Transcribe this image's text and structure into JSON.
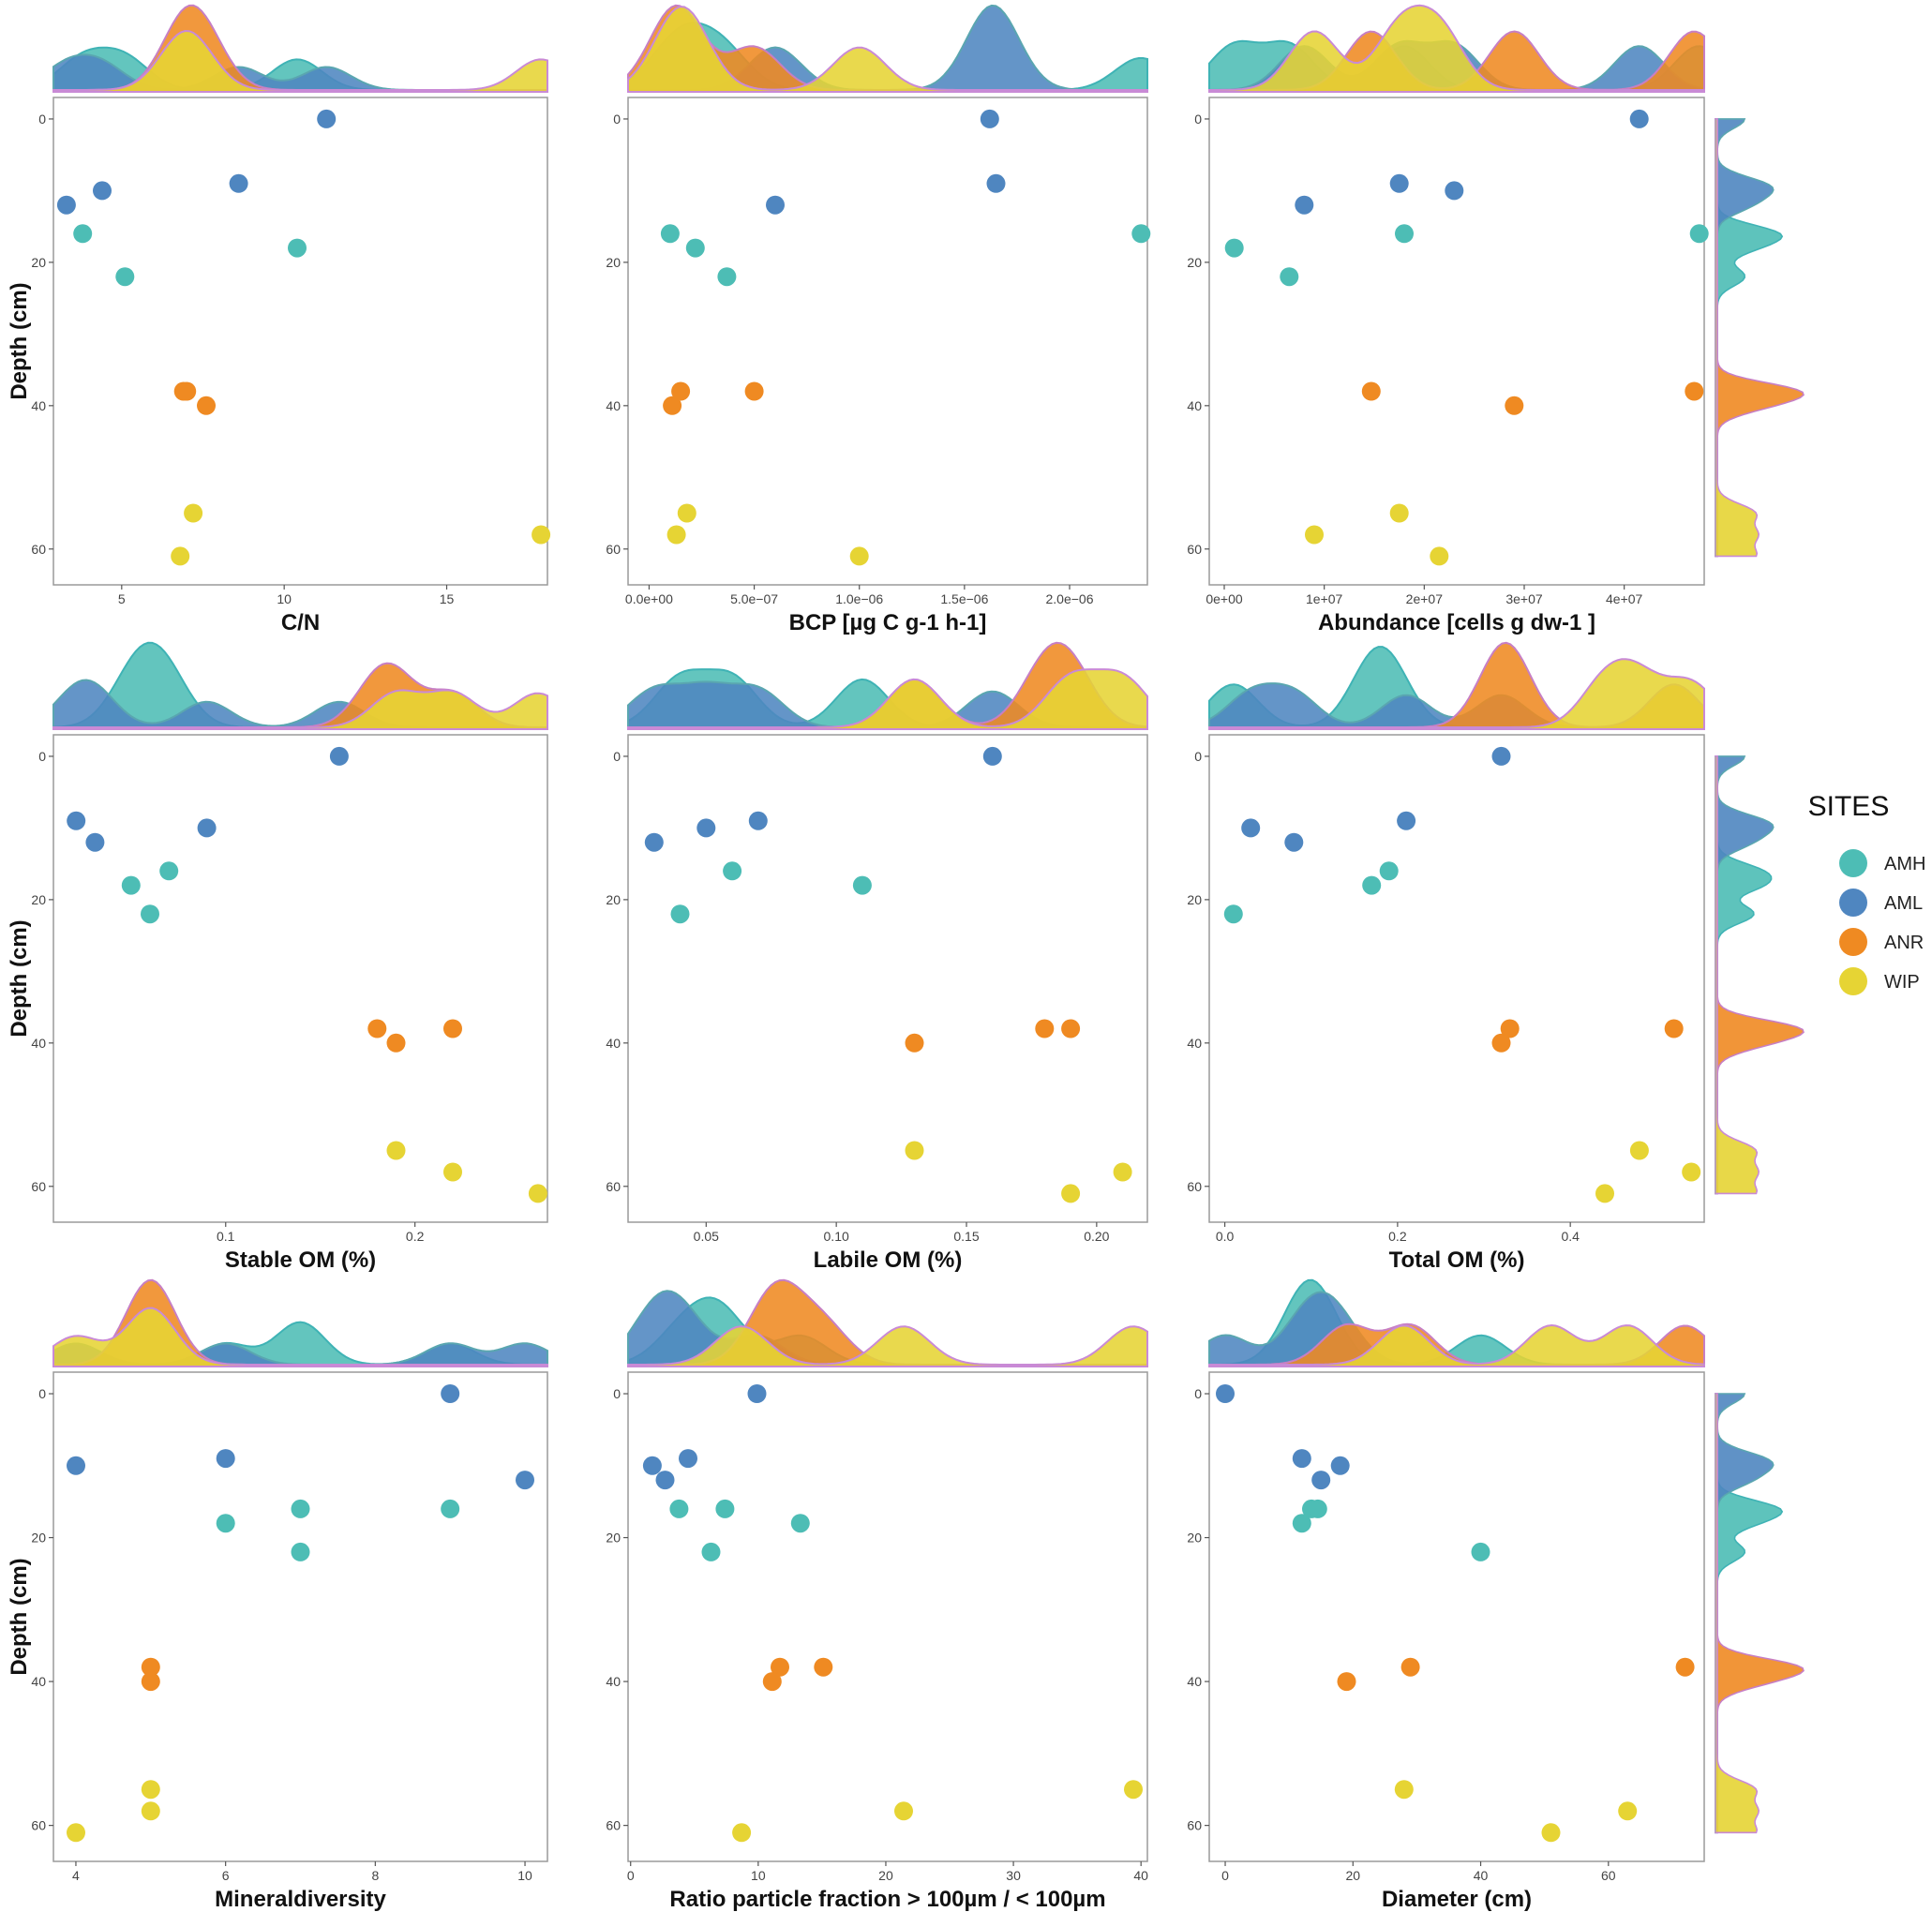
{
  "legend": {
    "title": "SITES",
    "items": [
      {
        "name": "AMH",
        "color": "#4dbdb5"
      },
      {
        "name": "AML",
        "color": "#4f86c0"
      },
      {
        "name": "ANR",
        "color": "#ef8a22"
      },
      {
        "name": "WIP",
        "color": "#e6d434"
      }
    ]
  },
  "y_axis": {
    "label": "Depth (cm)",
    "ticks": [
      0,
      20,
      40,
      60
    ],
    "range": [
      -3,
      65
    ]
  },
  "chart_data": [
    {
      "type": "scatter",
      "xlabel": "C/N",
      "xlim": [
        2.9,
        18.1
      ],
      "xticks": [
        5,
        10,
        15
      ],
      "xtick_labels": [
        "5",
        "10",
        "15"
      ],
      "top_density": true,
      "right_density": false,
      "points": [
        {
          "site": "AML",
          "x": 11.3,
          "y": 0
        },
        {
          "site": "AML",
          "x": 8.6,
          "y": 9
        },
        {
          "site": "AML",
          "x": 4.4,
          "y": 10
        },
        {
          "site": "AML",
          "x": 3.3,
          "y": 12
        },
        {
          "site": "AMH",
          "x": 3.8,
          "y": 16
        },
        {
          "site": "AMH",
          "x": 10.4,
          "y": 18
        },
        {
          "site": "AMH",
          "x": 5.1,
          "y": 22
        },
        {
          "site": "ANR",
          "x": 6.9,
          "y": 38
        },
        {
          "site": "ANR",
          "x": 7.0,
          "y": 38
        },
        {
          "site": "ANR",
          "x": 7.6,
          "y": 40
        },
        {
          "site": "WIP",
          "x": 7.2,
          "y": 55
        },
        {
          "site": "WIP",
          "x": 17.9,
          "y": 58
        },
        {
          "site": "WIP",
          "x": 6.8,
          "y": 61
        }
      ]
    },
    {
      "type": "scatter",
      "xlabel": "BCP [µg C g-1 h-1]",
      "xlim": [
        -1e-07,
        2.37e-06
      ],
      "xticks": [
        0,
        5e-07,
        1e-06,
        1.5e-06,
        2e-06
      ],
      "xtick_labels": [
        "0.0e+00",
        "5.0e−07",
        "1.0e−06",
        "1.5e−06",
        "2.0e−06"
      ],
      "top_density": true,
      "right_density": false,
      "points": [
        {
          "site": "AML",
          "x": 1.62e-06,
          "y": 0
        },
        {
          "site": "AML",
          "x": 1.65e-06,
          "y": 9
        },
        {
          "site": "AML",
          "x": 6e-07,
          "y": 12
        },
        {
          "site": "AMH",
          "x": 1e-07,
          "y": 16
        },
        {
          "site": "AMH",
          "x": 2.34e-06,
          "y": 16
        },
        {
          "site": "AMH",
          "x": 2.2e-07,
          "y": 18
        },
        {
          "site": "AMH",
          "x": 3.7e-07,
          "y": 22
        },
        {
          "site": "ANR",
          "x": 1.5e-07,
          "y": 38
        },
        {
          "site": "ANR",
          "x": 5e-07,
          "y": 38
        },
        {
          "site": "ANR",
          "x": 1.1e-07,
          "y": 40
        },
        {
          "site": "WIP",
          "x": 1.8e-07,
          "y": 55
        },
        {
          "site": "WIP",
          "x": 1.3e-07,
          "y": 58
        },
        {
          "site": "WIP",
          "x": 1e-06,
          "y": 61
        }
      ]
    },
    {
      "type": "scatter",
      "xlabel": "Abundance [cells g dw-1 ]",
      "xlim": [
        -1500000.0,
        48000000.0
      ],
      "xticks": [
        0,
        10000000.0,
        20000000.0,
        30000000.0,
        40000000.0
      ],
      "xtick_labels": [
        "0e+00",
        "1e+07",
        "2e+07",
        "3e+07",
        "4e+07"
      ],
      "top_density": true,
      "right_density": true,
      "points": [
        {
          "site": "AML",
          "x": 41500000.0,
          "y": 0
        },
        {
          "site": "AML",
          "x": 17500000.0,
          "y": 9
        },
        {
          "site": "AML",
          "x": 23000000.0,
          "y": 10
        },
        {
          "site": "AML",
          "x": 8000000.0,
          "y": 12
        },
        {
          "site": "AMH",
          "x": 18000000.0,
          "y": 16
        },
        {
          "site": "AMH",
          "x": 47500000.0,
          "y": 16
        },
        {
          "site": "AMH",
          "x": 1000000.0,
          "y": 18
        },
        {
          "site": "AMH",
          "x": 6500000.0,
          "y": 22
        },
        {
          "site": "ANR",
          "x": 14700000.0,
          "y": 38
        },
        {
          "site": "ANR",
          "x": 47000000.0,
          "y": 38
        },
        {
          "site": "ANR",
          "x": 29000000.0,
          "y": 40
        },
        {
          "site": "WIP",
          "x": 17500000.0,
          "y": 55
        },
        {
          "site": "WIP",
          "x": 9000000.0,
          "y": 58
        },
        {
          "site": "WIP",
          "x": 21500000.0,
          "y": 61
        }
      ]
    },
    {
      "type": "scatter",
      "xlabel": "Stable OM (%)",
      "xlim": [
        0.009,
        0.27
      ],
      "xticks": [
        0.1,
        0.2
      ],
      "xtick_labels": [
        "0.1",
        "0.2"
      ],
      "top_density": true,
      "right_density": false,
      "points": [
        {
          "site": "AML",
          "x": 0.16,
          "y": 0
        },
        {
          "site": "AML",
          "x": 0.021,
          "y": 9
        },
        {
          "site": "AML",
          "x": 0.09,
          "y": 10
        },
        {
          "site": "AML",
          "x": 0.031,
          "y": 12
        },
        {
          "site": "AMH",
          "x": 0.07,
          "y": 16
        },
        {
          "site": "AMH",
          "x": 0.05,
          "y": 18
        },
        {
          "site": "AMH",
          "x": 0.06,
          "y": 22
        },
        {
          "site": "ANR",
          "x": 0.18,
          "y": 38
        },
        {
          "site": "ANR",
          "x": 0.22,
          "y": 38
        },
        {
          "site": "ANR",
          "x": 0.19,
          "y": 40
        },
        {
          "site": "WIP",
          "x": 0.19,
          "y": 55
        },
        {
          "site": "WIP",
          "x": 0.22,
          "y": 58
        },
        {
          "site": "WIP",
          "x": 0.265,
          "y": 61
        }
      ]
    },
    {
      "type": "scatter",
      "xlabel": "Labile OM (%)",
      "xlim": [
        0.02,
        0.2195
      ],
      "xticks": [
        0.05,
        0.1,
        0.15,
        0.2
      ],
      "xtick_labels": [
        "0.05",
        "0.10",
        "0.15",
        "0.20"
      ],
      "top_density": true,
      "right_density": false,
      "points": [
        {
          "site": "AML",
          "x": 0.16,
          "y": 0
        },
        {
          "site": "AML",
          "x": 0.07,
          "y": 9
        },
        {
          "site": "AML",
          "x": 0.05,
          "y": 10
        },
        {
          "site": "AML",
          "x": 0.03,
          "y": 12
        },
        {
          "site": "AMH",
          "x": 0.06,
          "y": 16
        },
        {
          "site": "AMH",
          "x": 0.11,
          "y": 18
        },
        {
          "site": "AMH",
          "x": 0.04,
          "y": 22
        },
        {
          "site": "ANR",
          "x": 0.18,
          "y": 38
        },
        {
          "site": "ANR",
          "x": 0.19,
          "y": 38
        },
        {
          "site": "ANR",
          "x": 0.13,
          "y": 40
        },
        {
          "site": "WIP",
          "x": 0.13,
          "y": 55
        },
        {
          "site": "WIP",
          "x": 0.21,
          "y": 58
        },
        {
          "site": "WIP",
          "x": 0.19,
          "y": 61
        }
      ]
    },
    {
      "type": "scatter",
      "xlabel": "Total OM (%)",
      "xlim": [
        -0.018,
        0.555
      ],
      "xticks": [
        0,
        0.2,
        0.4
      ],
      "xtick_labels": [
        "0.0",
        "0.2",
        "0.4"
      ],
      "top_density": true,
      "right_density": true,
      "points": [
        {
          "site": "AML",
          "x": 0.32,
          "y": 0
        },
        {
          "site": "AML",
          "x": 0.21,
          "y": 9
        },
        {
          "site": "AML",
          "x": 0.03,
          "y": 10
        },
        {
          "site": "AML",
          "x": 0.08,
          "y": 12
        },
        {
          "site": "AMH",
          "x": 0.19,
          "y": 16
        },
        {
          "site": "AMH",
          "x": 0.17,
          "y": 18
        },
        {
          "site": "AMH",
          "x": 0.01,
          "y": 22
        },
        {
          "site": "ANR",
          "x": 0.33,
          "y": 38
        },
        {
          "site": "ANR",
          "x": 0.52,
          "y": 38
        },
        {
          "site": "ANR",
          "x": 0.32,
          "y": 40
        },
        {
          "site": "WIP",
          "x": 0.48,
          "y": 55
        },
        {
          "site": "WIP",
          "x": 0.54,
          "y": 58
        },
        {
          "site": "WIP",
          "x": 0.44,
          "y": 61
        }
      ]
    },
    {
      "type": "scatter",
      "xlabel": "Mineraldiversity",
      "xlim": [
        3.7,
        10.3
      ],
      "xticks": [
        4,
        6,
        8,
        10
      ],
      "xtick_labels": [
        "4",
        "6",
        "8",
        "10"
      ],
      "top_density": true,
      "right_density": false,
      "points": [
        {
          "site": "AML",
          "x": 9,
          "y": 0
        },
        {
          "site": "AML",
          "x": 6,
          "y": 9
        },
        {
          "site": "AML",
          "x": 4,
          "y": 10
        },
        {
          "site": "AML",
          "x": 10,
          "y": 12
        },
        {
          "site": "AMH",
          "x": 7,
          "y": 16
        },
        {
          "site": "AMH",
          "x": 9,
          "y": 16
        },
        {
          "site": "AMH",
          "x": 6,
          "y": 18
        },
        {
          "site": "AMH",
          "x": 7,
          "y": 22
        },
        {
          "site": "ANR",
          "x": 5,
          "y": 38
        },
        {
          "site": "ANR",
          "x": 5,
          "y": 40
        },
        {
          "site": "WIP",
          "x": 5,
          "y": 55
        },
        {
          "site": "WIP",
          "x": 5,
          "y": 58
        },
        {
          "site": "WIP",
          "x": 4,
          "y": 61
        }
      ]
    },
    {
      "type": "scatter",
      "xlabel": "Ratio particle fraction > 100µm / < 100µm",
      "xlim": [
        -0.2,
        40.5
      ],
      "xticks": [
        0,
        10,
        20,
        30,
        40
      ],
      "xtick_labels": [
        "0",
        "10",
        "20",
        "30",
        "40"
      ],
      "top_density": true,
      "right_density": false,
      "points": [
        {
          "site": "AML",
          "x": 9.9,
          "y": 0
        },
        {
          "site": "AML",
          "x": 4.5,
          "y": 9
        },
        {
          "site": "AML",
          "x": 1.7,
          "y": 10
        },
        {
          "site": "AML",
          "x": 2.7,
          "y": 12
        },
        {
          "site": "AMH",
          "x": 3.8,
          "y": 16
        },
        {
          "site": "AMH",
          "x": 7.4,
          "y": 16
        },
        {
          "site": "AMH",
          "x": 13.3,
          "y": 18
        },
        {
          "site": "AMH",
          "x": 6.3,
          "y": 22
        },
        {
          "site": "ANR",
          "x": 11.7,
          "y": 38
        },
        {
          "site": "ANR",
          "x": 15.1,
          "y": 38
        },
        {
          "site": "ANR",
          "x": 11.1,
          "y": 40
        },
        {
          "site": "WIP",
          "x": 39.4,
          "y": 55
        },
        {
          "site": "WIP",
          "x": 21.4,
          "y": 58
        },
        {
          "site": "WIP",
          "x": 8.7,
          "y": 61
        }
      ]
    },
    {
      "type": "scatter",
      "xlabel": "Diameter (cm)",
      "xlim": [
        -2.5,
        75
      ],
      "xticks": [
        0,
        20,
        40,
        60
      ],
      "xtick_labels": [
        "0",
        "20",
        "40",
        "60"
      ],
      "top_density": true,
      "right_density": true,
      "points": [
        {
          "site": "AML",
          "x": 0,
          "y": 0
        },
        {
          "site": "AML",
          "x": 12,
          "y": 9
        },
        {
          "site": "AML",
          "x": 18,
          "y": 10
        },
        {
          "site": "AML",
          "x": 15,
          "y": 12
        },
        {
          "site": "AMH",
          "x": 13.5,
          "y": 16
        },
        {
          "site": "AMH",
          "x": 14.5,
          "y": 16
        },
        {
          "site": "AMH",
          "x": 12,
          "y": 18
        },
        {
          "site": "AMH",
          "x": 40,
          "y": 22
        },
        {
          "site": "ANR",
          "x": 29,
          "y": 38
        },
        {
          "site": "ANR",
          "x": 72,
          "y": 38
        },
        {
          "site": "ANR",
          "x": 19,
          "y": 40
        },
        {
          "site": "WIP",
          "x": 28,
          "y": 55
        },
        {
          "site": "WIP",
          "x": 63,
          "y": 58
        },
        {
          "site": "WIP",
          "x": 51,
          "y": 61
        }
      ]
    }
  ]
}
